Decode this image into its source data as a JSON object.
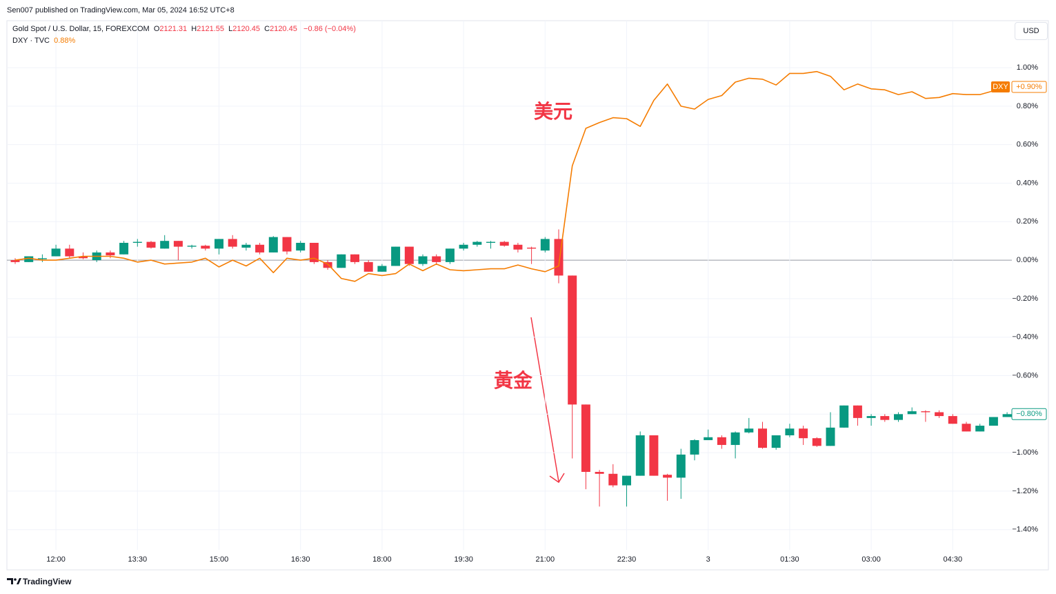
{
  "header": {
    "published": "Sen007 published on TradingView.com, Mar 05, 2024 16:52 UTC+8",
    "currency": "USD",
    "footer": "TradingView"
  },
  "legend": {
    "ohlc": [
      {
        "label": "O",
        "value": "2121.31"
      },
      {
        "label": "H",
        "value": "2121.55"
      },
      {
        "label": "L",
        "value": "2120.45"
      },
      {
        "label": "C",
        "value": "2120.45"
      }
    ],
    "change": "−0.86 (−0.04%)",
    "dxy_value": "0.88%"
  },
  "annotations": [
    "美元",
    "黃金"
  ],
  "chart_data": {
    "type": "candlestick",
    "grid": true,
    "categories": [
      null,
      null,
      null,
      "12:00",
      null,
      null,
      null,
      null,
      null,
      "13:30",
      null,
      null,
      null,
      null,
      null,
      "15:00",
      null,
      null,
      null,
      null,
      null,
      "16:30",
      null,
      null,
      null,
      null,
      null,
      "18:00",
      null,
      null,
      null,
      null,
      null,
      "19:30",
      null,
      null,
      null,
      null,
      null,
      "21:00",
      null,
      null,
      null,
      null,
      null,
      "22:30",
      null,
      null,
      null,
      null,
      null,
      "3",
      null,
      null,
      null,
      null,
      null,
      "01:30",
      null,
      null,
      null,
      null,
      null,
      "03:00",
      null,
      null,
      null,
      null,
      null,
      "04:30",
      null,
      null,
      null,
      null
    ],
    "ylim": [
      -1.505,
      1.244
    ],
    "yticks": [
      {
        "value": 1,
        "label": "1.00%"
      },
      {
        "value": 0.8,
        "label": "0.80%"
      },
      {
        "value": 0.6,
        "label": "0.60%"
      },
      {
        "value": 0.4,
        "label": "0.40%"
      },
      {
        "value": 0.2,
        "label": "0.20%"
      },
      {
        "value": 0,
        "label": "0.00%"
      },
      {
        "value": -0.2,
        "label": "−0.20%"
      },
      {
        "value": -0.4,
        "label": "−0.40%"
      },
      {
        "value": -0.6,
        "label": "−0.60%"
      },
      {
        "value": -0.8,
        "label": "−0.80%"
      },
      {
        "value": -1,
        "label": "−1.00%"
      },
      {
        "value": -1.2,
        "label": "−1.20%"
      },
      {
        "value": -1.4,
        "label": "−1.40%"
      }
    ],
    "series": [
      {
        "name": "Gold Spot / U.S. Dollar, 15, FOREXCOM",
        "type": "candlestick",
        "up_color": "#089981",
        "down_color": "#f23645",
        "price_label": "−0.80%",
        "open": [
          0.0,
          -0.01,
          0.005,
          0.02,
          0.06,
          0.02,
          0.0,
          0.04,
          0.03,
          0.09,
          0.095,
          0.06,
          0.1,
          0.07,
          0.075,
          0.06,
          0.11,
          0.065,
          0.08,
          0.04,
          0.12,
          0.05,
          0.09,
          -0.01,
          -0.04,
          0.03,
          -0.01,
          -0.06,
          -0.03,
          0.07,
          -0.02,
          0.02,
          -0.01,
          0.06,
          0.08,
          0.09,
          0.095,
          0.08,
          0.065,
          0.05,
          0.11,
          -0.08,
          -0.75,
          -1.1,
          -1.11,
          -1.17,
          -1.12,
          -0.91,
          -1.115,
          -1.13,
          -1.01,
          -0.935,
          -0.92,
          -0.96,
          -0.895,
          -0.875,
          -0.975,
          -0.91,
          -0.875,
          -0.925,
          -0.965,
          -0.87,
          -0.755,
          -0.82,
          -0.81,
          -0.83,
          -0.8,
          -0.785,
          -0.79,
          -0.81,
          -0.85,
          -0.89,
          -0.86,
          -0.815
        ],
        "high": [
          0.01,
          0.02,
          0.03,
          0.08,
          0.08,
          0.04,
          0.05,
          0.05,
          0.1,
          0.11,
          0.1,
          0.13,
          0.1,
          0.08,
          0.08,
          0.11,
          0.13,
          0.09,
          0.09,
          0.125,
          0.12,
          0.1,
          0.09,
          0.0,
          0.03,
          0.03,
          0.0,
          -0.02,
          0.07,
          0.07,
          0.03,
          0.03,
          0.06,
          0.09,
          0.1,
          0.1,
          0.1,
          0.09,
          0.07,
          0.12,
          0.16,
          -0.08,
          -0.75,
          -1.09,
          -1.06,
          -1.12,
          -0.89,
          -0.91,
          -1.11,
          -0.98,
          -0.93,
          -0.88,
          -0.91,
          -0.89,
          -0.82,
          -0.84,
          -0.91,
          -0.85,
          -0.86,
          -0.92,
          -0.79,
          -0.755,
          -0.755,
          -0.8,
          -0.8,
          -0.79,
          -0.765,
          -0.78,
          -0.78,
          -0.8,
          -0.84,
          -0.85,
          -0.815,
          -0.79
        ],
        "low": [
          -0.02,
          -0.01,
          -0.01,
          0.02,
          0.01,
          0.005,
          -0.01,
          0.01,
          0.03,
          0.07,
          0.06,
          0.06,
          0.0,
          0.06,
          0.05,
          0.03,
          0.06,
          0.05,
          0.03,
          0.04,
          0.03,
          0.04,
          -0.02,
          -0.05,
          -0.04,
          -0.02,
          -0.06,
          -0.06,
          -0.03,
          -0.03,
          -0.03,
          -0.02,
          -0.02,
          0.05,
          0.07,
          0.06,
          0.07,
          0.04,
          -0.02,
          0.04,
          -0.12,
          -1.03,
          -1.19,
          -1.28,
          -1.18,
          -1.28,
          -1.12,
          -1.12,
          -1.25,
          -1.24,
          -1.04,
          -0.93,
          -0.98,
          -1.03,
          -0.9,
          -0.98,
          -0.985,
          -0.92,
          -0.96,
          -0.97,
          -0.965,
          -0.87,
          -0.86,
          -0.86,
          -0.84,
          -0.84,
          -0.8,
          -0.84,
          -0.82,
          -0.85,
          -0.89,
          -0.89,
          -0.86,
          -0.815
        ],
        "close": [
          -0.01,
          0.02,
          0.01,
          0.06,
          0.02,
          0.01,
          0.04,
          0.025,
          0.09,
          0.095,
          0.065,
          0.1,
          0.07,
          0.075,
          0.06,
          0.11,
          0.07,
          0.08,
          0.04,
          0.12,
          0.045,
          0.09,
          -0.01,
          -0.04,
          0.03,
          -0.01,
          -0.06,
          -0.03,
          0.07,
          -0.02,
          0.02,
          -0.01,
          0.06,
          0.08,
          0.095,
          0.095,
          0.075,
          0.055,
          0.06,
          0.11,
          -0.08,
          -0.75,
          -1.1,
          -1.11,
          -1.17,
          -1.12,
          -0.91,
          -1.12,
          -1.13,
          -1.01,
          -0.935,
          -0.92,
          -0.96,
          -0.895,
          -0.875,
          -0.975,
          -0.91,
          -0.875,
          -0.925,
          -0.965,
          -0.87,
          -0.755,
          -0.82,
          -0.81,
          -0.83,
          -0.8,
          -0.785,
          -0.79,
          -0.81,
          -0.85,
          -0.89,
          -0.86,
          -0.815,
          -0.8
        ]
      },
      {
        "name": "DXY · TVC",
        "short_name": "DXY",
        "type": "line",
        "color": "#f57c00",
        "price_label": "+0.90%",
        "values": [
          0.0,
          0.01,
          0.0,
          0.0,
          0.01,
          0.02,
          0.02,
          0.02,
          0.01,
          -0.01,
          0.0,
          -0.02,
          -0.015,
          -0.01,
          0.01,
          -0.035,
          0.0,
          -0.03,
          0.01,
          -0.065,
          0.01,
          0.0,
          0.01,
          -0.02,
          -0.095,
          -0.11,
          -0.07,
          -0.08,
          -0.07,
          -0.02,
          -0.055,
          -0.02,
          -0.05,
          -0.055,
          -0.05,
          -0.045,
          -0.045,
          -0.025,
          -0.045,
          -0.06,
          -0.03,
          0.49,
          0.685,
          0.715,
          0.74,
          0.735,
          0.695,
          0.83,
          0.915,
          0.8,
          0.785,
          0.835,
          0.855,
          0.925,
          0.945,
          0.94,
          0.91,
          0.97,
          0.97,
          0.98,
          0.955,
          0.885,
          0.915,
          0.89,
          0.885,
          0.86,
          0.875,
          0.84,
          0.845,
          0.865,
          0.86,
          0.86,
          0.88,
          0.9
        ]
      }
    ]
  }
}
